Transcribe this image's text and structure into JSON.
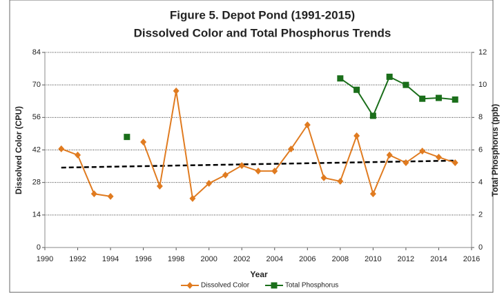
{
  "chart_data": {
    "type": "line",
    "title": [
      "Figure 5. Depot Pond (1991-2015)",
      "Dissolved Color and Total Phosphorus Trends"
    ],
    "x_label": "Year",
    "y_label": "Dissolved Color (CPU)",
    "y2_label": "Total Phosphorus  (ppb)",
    "x": [
      1991,
      1992,
      1993,
      1994,
      1995,
      1996,
      1997,
      1998,
      1999,
      2000,
      2001,
      2002,
      2003,
      2004,
      2005,
      2006,
      2007,
      2008,
      2009,
      2010,
      2011,
      2012,
      2013,
      2014,
      2015
    ],
    "series": [
      {
        "name": "Dissolved Color",
        "color": "#e07b20",
        "marker": "diamond",
        "values": [
          42.5,
          39.8,
          23.1,
          22.0,
          null,
          45.4,
          26.4,
          67.4,
          21.1,
          27.6,
          31.2,
          35.3,
          32.9,
          32.9,
          42.4,
          52.8,
          30.0,
          28.5,
          48.1,
          23.1,
          39.8,
          36.5,
          41.5,
          38.9,
          36.5
        ]
      },
      {
        "name": "Total Phosphorus",
        "color": "#1a6e1a",
        "marker": "square",
        "axis": "y2",
        "values": [
          null,
          null,
          null,
          null,
          6.8,
          null,
          null,
          null,
          null,
          null,
          null,
          null,
          null,
          null,
          null,
          null,
          null,
          10.4,
          9.7,
          8.1,
          10.5,
          10.0,
          9.15,
          9.2,
          9.1
        ]
      }
    ],
    "trend_line": {
      "x": [
        1991,
        2015
      ],
      "values": [
        34.4,
        37.4
      ],
      "color": "#000000"
    },
    "xlim": [
      1990,
      2016
    ],
    "xticks": [
      1990,
      1992,
      1994,
      1996,
      1998,
      2000,
      2002,
      2004,
      2006,
      2008,
      2010,
      2012,
      2014,
      2016
    ],
    "ylim": [
      0,
      84
    ],
    "yticks": [
      0,
      14,
      28,
      42,
      56,
      70,
      84
    ],
    "y2lim": [
      0,
      12
    ],
    "y2ticks": [
      0,
      2,
      4,
      6,
      8,
      10,
      12
    ],
    "grid": true,
    "legend": "bottom"
  }
}
